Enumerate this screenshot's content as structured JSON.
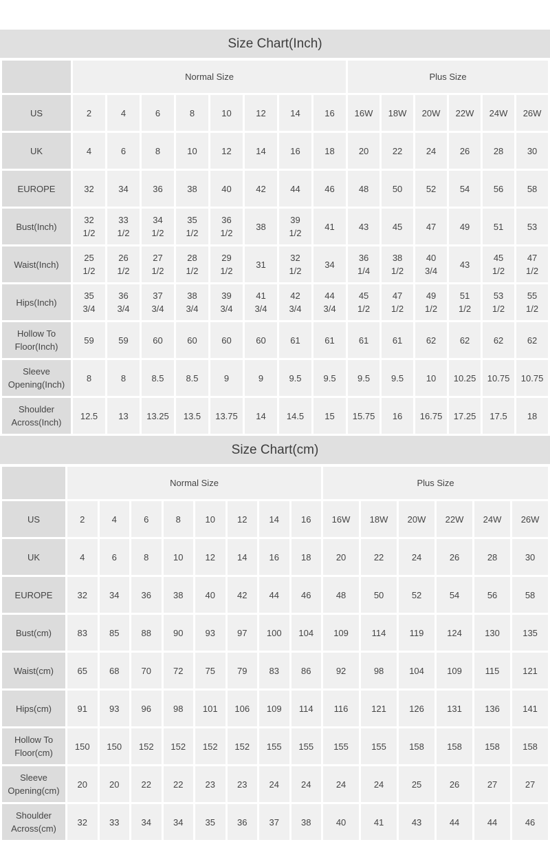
{
  "colors": {
    "title_bar_bg": "#e0e0e0",
    "row_header_bg": "#dcdcdc",
    "data_cell_bg": "#f0f0f0",
    "gap": "#ffffff",
    "text": "#444444"
  },
  "tables": [
    {
      "title": "Size Chart(Inch)",
      "unit": "inch",
      "corner_label": "",
      "groups": [
        {
          "label": "Normal Size",
          "span": 8
        },
        {
          "label": "Plus Size",
          "span": 6
        }
      ],
      "rows": [
        {
          "label": "US",
          "values": [
            "2",
            "4",
            "6",
            "8",
            "10",
            "12",
            "14",
            "16",
            "16W",
            "18W",
            "20W",
            "22W",
            "24W",
            "26W"
          ]
        },
        {
          "label": "UK",
          "values": [
            "4",
            "6",
            "8",
            "10",
            "12",
            "14",
            "16",
            "18",
            "20",
            "22",
            "24",
            "26",
            "28",
            "30"
          ]
        },
        {
          "label": "EUROPE",
          "values": [
            "32",
            "34",
            "36",
            "38",
            "40",
            "42",
            "44",
            "46",
            "48",
            "50",
            "52",
            "54",
            "56",
            "58"
          ]
        },
        {
          "label": "Bust(Inch)",
          "values": [
            "32\n1/2",
            "33\n1/2",
            "34\n1/2",
            "35\n1/2",
            "36\n1/2",
            "38",
            "39\n1/2",
            "41",
            "43",
            "45",
            "47",
            "49",
            "51",
            "53"
          ]
        },
        {
          "label": "Waist(Inch)",
          "values": [
            "25\n1/2",
            "26\n1/2",
            "27\n1/2",
            "28\n1/2",
            "29\n1/2",
            "31",
            "32\n1/2",
            "34",
            "36\n1/4",
            "38\n1/2",
            "40\n3/4",
            "43",
            "45\n1/2",
            "47\n1/2"
          ]
        },
        {
          "label": "Hips(Inch)",
          "values": [
            "35\n3/4",
            "36\n3/4",
            "37\n3/4",
            "38\n3/4",
            "39\n3/4",
            "41\n3/4",
            "42\n3/4",
            "44\n3/4",
            "45\n1/2",
            "47\n1/2",
            "49\n1/2",
            "51\n1/2",
            "53\n1/2",
            "55\n1/2"
          ]
        },
        {
          "label": "Hollow To Floor(Inch)",
          "values": [
            "59",
            "59",
            "60",
            "60",
            "60",
            "60",
            "61",
            "61",
            "61",
            "61",
            "62",
            "62",
            "62",
            "62"
          ]
        },
        {
          "label": "Sleeve Opening(Inch)",
          "values": [
            "8",
            "8",
            "8.5",
            "8.5",
            "9",
            "9",
            "9.5",
            "9.5",
            "9.5",
            "9.5",
            "10",
            "10.25",
            "10.75",
            "10.75"
          ]
        },
        {
          "label": "Shoulder Across(Inch)",
          "values": [
            "12.5",
            "13",
            "13.25",
            "13.5",
            "13.75",
            "14",
            "14.5",
            "15",
            "15.75",
            "16",
            "16.75",
            "17.25",
            "17.5",
            "18"
          ]
        }
      ]
    },
    {
      "title": "Size Chart(cm)",
      "unit": "cm",
      "corner_label": "",
      "groups": [
        {
          "label": "Normal Size",
          "span": 8
        },
        {
          "label": "Plus Size",
          "span": 6
        }
      ],
      "rows": [
        {
          "label": "US",
          "values": [
            "2",
            "4",
            "6",
            "8",
            "10",
            "12",
            "14",
            "16",
            "16W",
            "18W",
            "20W",
            "22W",
            "24W",
            "26W"
          ]
        },
        {
          "label": "UK",
          "values": [
            "4",
            "6",
            "8",
            "10",
            "12",
            "14",
            "16",
            "18",
            "20",
            "22",
            "24",
            "26",
            "28",
            "30"
          ]
        },
        {
          "label": "EUROPE",
          "values": [
            "32",
            "34",
            "36",
            "38",
            "40",
            "42",
            "44",
            "46",
            "48",
            "50",
            "52",
            "54",
            "56",
            "58"
          ]
        },
        {
          "label": "Bust(cm)",
          "values": [
            "83",
            "85",
            "88",
            "90",
            "93",
            "97",
            "100",
            "104",
            "109",
            "114",
            "119",
            "124",
            "130",
            "135"
          ]
        },
        {
          "label": "Waist(cm)",
          "values": [
            "65",
            "68",
            "70",
            "72",
            "75",
            "79",
            "83",
            "86",
            "92",
            "98",
            "104",
            "109",
            "115",
            "121"
          ]
        },
        {
          "label": "Hips(cm)",
          "values": [
            "91",
            "93",
            "96",
            "98",
            "101",
            "106",
            "109",
            "114",
            "116",
            "121",
            "126",
            "131",
            "136",
            "141"
          ]
        },
        {
          "label": "Hollow To Floor(cm)",
          "values": [
            "150",
            "150",
            "152",
            "152",
            "152",
            "152",
            "155",
            "155",
            "155",
            "155",
            "158",
            "158",
            "158",
            "158"
          ]
        },
        {
          "label": "Sleeve Opening(cm)",
          "values": [
            "20",
            "20",
            "22",
            "22",
            "23",
            "23",
            "24",
            "24",
            "24",
            "24",
            "25",
            "26",
            "27",
            "27"
          ]
        },
        {
          "label": "Shoulder Across(cm)",
          "values": [
            "32",
            "33",
            "34",
            "34",
            "35",
            "36",
            "37",
            "38",
            "40",
            "41",
            "43",
            "44",
            "44",
            "46"
          ]
        }
      ]
    }
  ]
}
